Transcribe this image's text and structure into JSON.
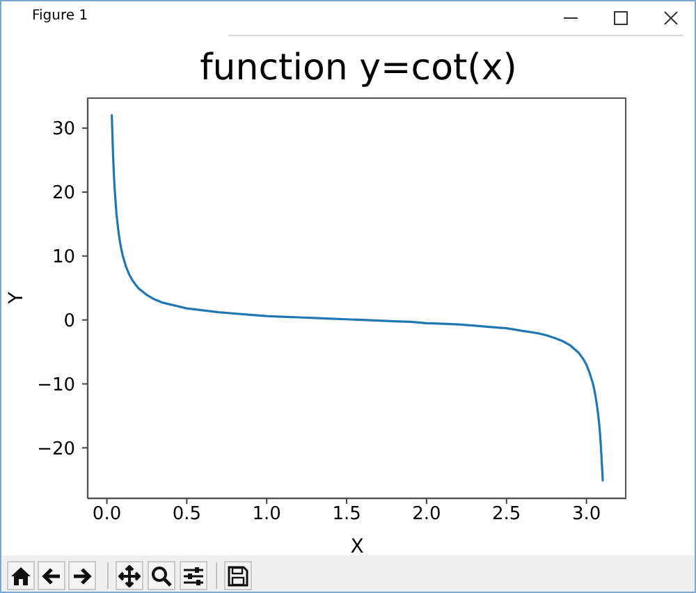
{
  "chart_data": {
    "type": "line",
    "title": "function y=cot(x)",
    "xlabel": "X",
    "ylabel": "Y",
    "annotations": [
      "Figure 1"
    ],
    "color": "#1f77b4",
    "x": [
      0.031,
      0.035,
      0.04,
      0.045,
      0.05,
      0.06,
      0.07,
      0.08,
      0.09,
      0.1,
      0.12,
      0.14,
      0.16,
      0.18,
      0.2,
      0.25,
      0.3,
      0.35,
      0.4,
      0.5,
      0.6,
      0.7,
      0.8,
      0.9,
      1.0,
      1.1,
      1.2,
      1.3,
      1.4,
      1.5,
      1.6,
      1.7,
      1.8,
      1.9,
      2.0,
      2.1,
      2.2,
      2.3,
      2.4,
      2.5,
      2.6,
      2.7,
      2.75,
      2.8,
      2.85,
      2.9,
      2.95,
      2.98,
      3.0,
      3.02,
      3.04,
      3.05,
      3.06,
      3.07,
      3.08,
      3.085,
      3.09,
      3.095,
      3.1,
      3.102
    ],
    "values": [
      32.0,
      28.6,
      25.0,
      22.2,
      20.0,
      16.6,
      14.3,
      12.5,
      11.1,
      10.0,
      8.3,
      7.1,
      6.2,
      5.5,
      4.9,
      3.9,
      3.2,
      2.7,
      2.4,
      1.8,
      1.5,
      1.2,
      1.0,
      0.8,
      0.6,
      0.5,
      0.4,
      0.3,
      0.2,
      0.1,
      0.0,
      -0.1,
      -0.2,
      -0.3,
      -0.5,
      -0.6,
      -0.7,
      -0.9,
      -1.1,
      -1.3,
      -1.7,
      -2.1,
      -2.4,
      -2.8,
      -3.3,
      -4.0,
      -5.1,
      -6.1,
      -7.0,
      -8.3,
      -9.9,
      -11.0,
      -12.4,
      -14.1,
      -16.3,
      -17.8,
      -19.6,
      -21.8,
      -24.0,
      -25.1
    ],
    "xlim": [
      -0.12,
      3.25
    ],
    "ylim": [
      -27.9,
      34.8
    ],
    "xticks": [
      {
        "value": 0,
        "label": "0.0"
      },
      0.5,
      {
        "value": 1,
        "label": "1.0"
      },
      1.5,
      {
        "value": 2,
        "label": "2.0"
      },
      2.5,
      {
        "value": 3,
        "label": "3.0"
      }
    ],
    "yticks": [
      {
        "value": -20,
        "label": "−20"
      },
      {
        "value": -10,
        "label": "−10"
      },
      0,
      10,
      20,
      30
    ]
  }
}
